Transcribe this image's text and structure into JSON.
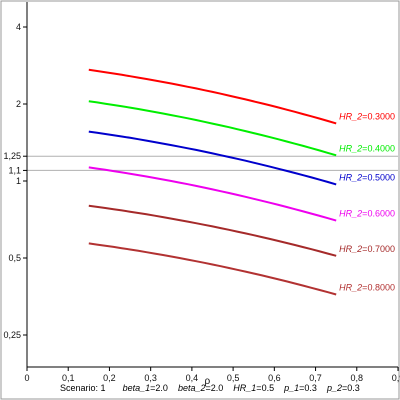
{
  "chart_data": {
    "type": "line",
    "xlabel": "ρ",
    "ylabel": "",
    "xlim": [
      0,
      0.9
    ],
    "ylim": [
      0.2,
      5.0
    ],
    "y_scale": "log",
    "x_ticks": [
      {
        "value": 0,
        "label": "0"
      },
      {
        "value": 0.1,
        "label": "0,1"
      },
      {
        "value": 0.2,
        "label": "0,2"
      },
      {
        "value": 0.3,
        "label": "0,3"
      },
      {
        "value": 0.4,
        "label": "0,4"
      },
      {
        "value": 0.5,
        "label": "0,5"
      },
      {
        "value": 0.6,
        "label": "0,6"
      },
      {
        "value": 0.7,
        "label": "0,7"
      },
      {
        "value": 0.8,
        "label": "0,8"
      },
      {
        "value": 0.9,
        "label": "0,9"
      }
    ],
    "y_ticks": [
      {
        "value": 4,
        "label": "4"
      },
      {
        "value": 2,
        "label": "2"
      },
      {
        "value": 1.25,
        "label": "1,25"
      },
      {
        "value": 1.1,
        "label": "1,1"
      },
      {
        "value": 1,
        "label": "1"
      },
      {
        "value": 0.5,
        "label": "0,5"
      },
      {
        "value": 0.25,
        "label": "0,25"
      }
    ],
    "reference_lines": [
      1.25,
      1.1
    ],
    "x": [
      0.15,
      0.75
    ],
    "series": [
      {
        "name_var": "HR_2",
        "name_eq": "=",
        "name_val": "0.3000",
        "color": "#ff0000",
        "values": [
          2.72,
          1.68
        ]
      },
      {
        "name_var": "HR_2",
        "name_eq": "=",
        "name_val": "0.4000",
        "color": "#00ee00",
        "values": [
          2.05,
          1.26
        ]
      },
      {
        "name_var": "HR_2",
        "name_eq": "=",
        "name_val": "0.5000",
        "color": "#0000cc",
        "values": [
          1.56,
          0.97
        ]
      },
      {
        "name_var": "HR_2",
        "name_eq": "=",
        "name_val": "0.6000",
        "color": "#ee00ee",
        "values": [
          1.13,
          0.7
        ]
      },
      {
        "name_var": "HR_2",
        "name_eq": "=",
        "name_val": "0.7000",
        "color": "#a52a2a",
        "values": [
          0.8,
          0.51
        ]
      },
      {
        "name_var": "HR_2",
        "name_eq": "=",
        "name_val": "0.8000",
        "color": "#b23232",
        "values": [
          0.57,
          0.36
        ]
      }
    ],
    "grid": false
  },
  "footer": {
    "scenario_label": "Scenario:",
    "scenario_value": "1",
    "params": [
      {
        "name": "beta_1",
        "eq": "=",
        "value": "2.0"
      },
      {
        "name": "beta_2",
        "eq": "=",
        "value": "2.0"
      },
      {
        "name": "HR_1",
        "eq": "=",
        "value": "0.5"
      },
      {
        "name": "p_1",
        "eq": "=",
        "value": "0.3"
      },
      {
        "name": "p_2",
        "eq": "=",
        "value": "0.3"
      }
    ]
  }
}
